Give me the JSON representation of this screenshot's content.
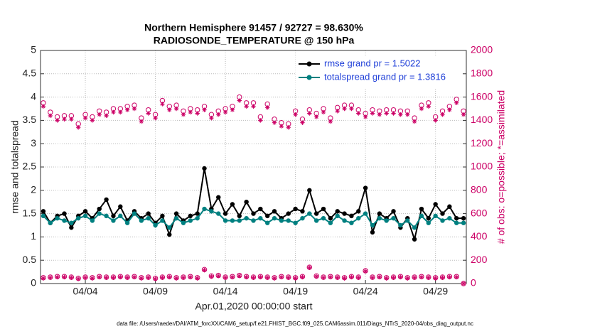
{
  "chart_data": {
    "type": "line",
    "title": "Northern Hemisphere 91457 / 92727 = 98.630%",
    "subtitle": "RADIOSONDE_TEMPERATURE @ 150 hPa",
    "x_label": "Apr.01,2020 00:00:00 start",
    "y_label": "rmse and totalspread",
    "y2_label": "# of obs: o=possible; *=assimilated",
    "footnote": "data file: /Users/raeder/DAI/ATM_forcXX/CAM6_setup/f.e21.FHIST_BGC.f09_025.CAM6assim.011/Diags_NTrS_2020-04/obs_diag_output.nc",
    "xlim": [
      -0.2,
      30.2
    ],
    "xticks": [
      {
        "value": 3,
        "label": "04/04"
      },
      {
        "value": 8,
        "label": "04/09"
      },
      {
        "value": 13,
        "label": "04/14"
      },
      {
        "value": 18,
        "label": "04/19"
      },
      {
        "value": 23,
        "label": "04/24"
      },
      {
        "value": 28,
        "label": "04/29"
      }
    ],
    "ylim": [
      0,
      5
    ],
    "yticks": [
      0,
      0.5,
      1,
      1.5,
      2,
      2.5,
      3,
      3.5,
      4,
      4.5,
      5
    ],
    "y2lim": [
      0,
      2000
    ],
    "y2ticks": [
      0,
      200,
      400,
      600,
      800,
      1000,
      1200,
      1400,
      1600,
      1800,
      2000
    ],
    "grid": true,
    "legend": "upper right",
    "x": [
      0,
      0.5,
      1,
      1.5,
      2,
      2.5,
      3,
      3.5,
      4,
      4.5,
      5,
      5.5,
      6,
      6.5,
      7,
      7.5,
      8,
      8.5,
      9,
      9.5,
      10,
      10.5,
      11,
      11.5,
      12,
      12.5,
      13,
      13.5,
      14,
      14.5,
      15,
      15.5,
      16,
      16.5,
      17,
      17.5,
      18,
      18.5,
      19,
      19.5,
      20,
      20.5,
      21,
      21.5,
      22,
      22.5,
      23,
      23.5,
      24,
      24.5,
      25,
      25.5,
      26,
      26.5,
      27,
      27.5,
      28,
      28.5,
      29,
      29.5,
      30
    ],
    "series": [
      {
        "name": "rmse grand pr = 1.5022",
        "color": "#000000",
        "marker": "dot",
        "values": [
          1.55,
          1.3,
          1.45,
          1.5,
          1.2,
          1.45,
          1.55,
          1.4,
          1.6,
          1.8,
          1.45,
          1.65,
          1.35,
          1.55,
          1.4,
          1.5,
          1.3,
          1.45,
          1.05,
          1.5,
          1.35,
          1.45,
          1.5,
          2.47,
          1.6,
          1.85,
          1.5,
          1.7,
          1.45,
          1.75,
          1.5,
          1.6,
          1.45,
          1.55,
          1.4,
          1.5,
          1.6,
          1.55,
          2.0,
          1.5,
          1.6,
          1.4,
          1.55,
          1.5,
          1.45,
          1.55,
          2.05,
          1.1,
          1.5,
          1.4,
          1.55,
          1.2,
          1.4,
          0.95,
          1.6,
          1.4,
          1.7,
          1.5,
          1.65,
          1.4,
          1.4
        ]
      },
      {
        "name": "totalspread grand pr = 1.3816",
        "color": "#008080",
        "marker": "dot",
        "values": [
          1.45,
          1.3,
          1.4,
          1.35,
          1.3,
          1.4,
          1.45,
          1.35,
          1.5,
          1.45,
          1.35,
          1.45,
          1.3,
          1.5,
          1.35,
          1.4,
          1.25,
          1.35,
          1.2,
          1.4,
          1.3,
          1.35,
          1.4,
          1.6,
          1.55,
          1.5,
          1.35,
          1.35,
          1.35,
          1.4,
          1.35,
          1.4,
          1.3,
          1.4,
          1.35,
          1.35,
          1.3,
          1.4,
          1.5,
          1.35,
          1.4,
          1.3,
          1.45,
          1.35,
          1.3,
          1.4,
          1.5,
          1.25,
          1.4,
          1.35,
          1.4,
          1.25,
          1.35,
          1.2,
          1.45,
          1.3,
          1.45,
          1.35,
          1.4,
          1.3,
          1.3
        ]
      },
      {
        "color": "#cc0066",
        "marker": "o",
        "axis": "y2",
        "values": [
          1550,
          1470,
          1430,
          1440,
          1440,
          1370,
          1450,
          1430,
          1480,
          1470,
          1500,
          1500,
          1520,
          1530,
          1420,
          1490,
          1450,
          1570,
          1520,
          1530,
          1480,
          1500,
          1490,
          1520,
          1450,
          1480,
          1500,
          1520,
          1600,
          1550,
          1550,
          1430,
          1540,
          1410,
          1380,
          1370,
          1480,
          1410,
          1490,
          1460,
          1500,
          1420,
          1510,
          1530,
          1530,
          1490,
          1460,
          1490,
          1480,
          1490,
          1490,
          1480,
          1480,
          1420,
          1530,
          1550,
          1430,
          1480,
          1520,
          1580,
          1480
        ]
      },
      {
        "color": "#cc0066",
        "marker": "*",
        "axis": "y2",
        "values": [
          1520,
          1440,
          1400,
          1410,
          1410,
          1340,
          1420,
          1400,
          1450,
          1440,
          1470,
          1470,
          1490,
          1500,
          1390,
          1460,
          1420,
          1540,
          1490,
          1500,
          1450,
          1470,
          1460,
          1490,
          1420,
          1450,
          1470,
          1490,
          1570,
          1520,
          1520,
          1400,
          1510,
          1380,
          1350,
          1340,
          1450,
          1380,
          1460,
          1430,
          1470,
          1390,
          1480,
          1500,
          1500,
          1460,
          1430,
          1460,
          1450,
          1460,
          1460,
          1450,
          1450,
          1390,
          1500,
          1520,
          1400,
          1450,
          1490,
          1550,
          1450
        ]
      },
      {
        "color": "#cc0066",
        "marker": "o",
        "axis": "y2",
        "values": [
          50,
          55,
          60,
          60,
          55,
          45,
          55,
          50,
          60,
          55,
          55,
          60,
          55,
          60,
          50,
          55,
          45,
          55,
          60,
          50,
          55,
          60,
          50,
          120,
          65,
          70,
          55,
          60,
          70,
          60,
          55,
          60,
          55,
          50,
          60,
          55,
          50,
          60,
          140,
          65,
          55,
          60,
          55,
          50,
          60,
          55,
          110,
          55,
          60,
          50,
          55,
          60,
          50,
          55,
          60,
          55,
          50,
          55,
          60,
          60,
          0
        ]
      },
      {
        "color": "#cc0066",
        "marker": "*",
        "axis": "y2",
        "values": [
          45,
          50,
          55,
          55,
          50,
          40,
          50,
          45,
          55,
          50,
          50,
          55,
          50,
          55,
          45,
          50,
          40,
          50,
          55,
          45,
          50,
          55,
          45,
          115,
          60,
          65,
          50,
          55,
          65,
          55,
          50,
          55,
          50,
          45,
          55,
          50,
          45,
          55,
          135,
          60,
          50,
          55,
          50,
          45,
          55,
          50,
          105,
          50,
          55,
          45,
          50,
          55,
          45,
          50,
          55,
          50,
          45,
          50,
          55,
          55,
          0
        ]
      }
    ]
  }
}
